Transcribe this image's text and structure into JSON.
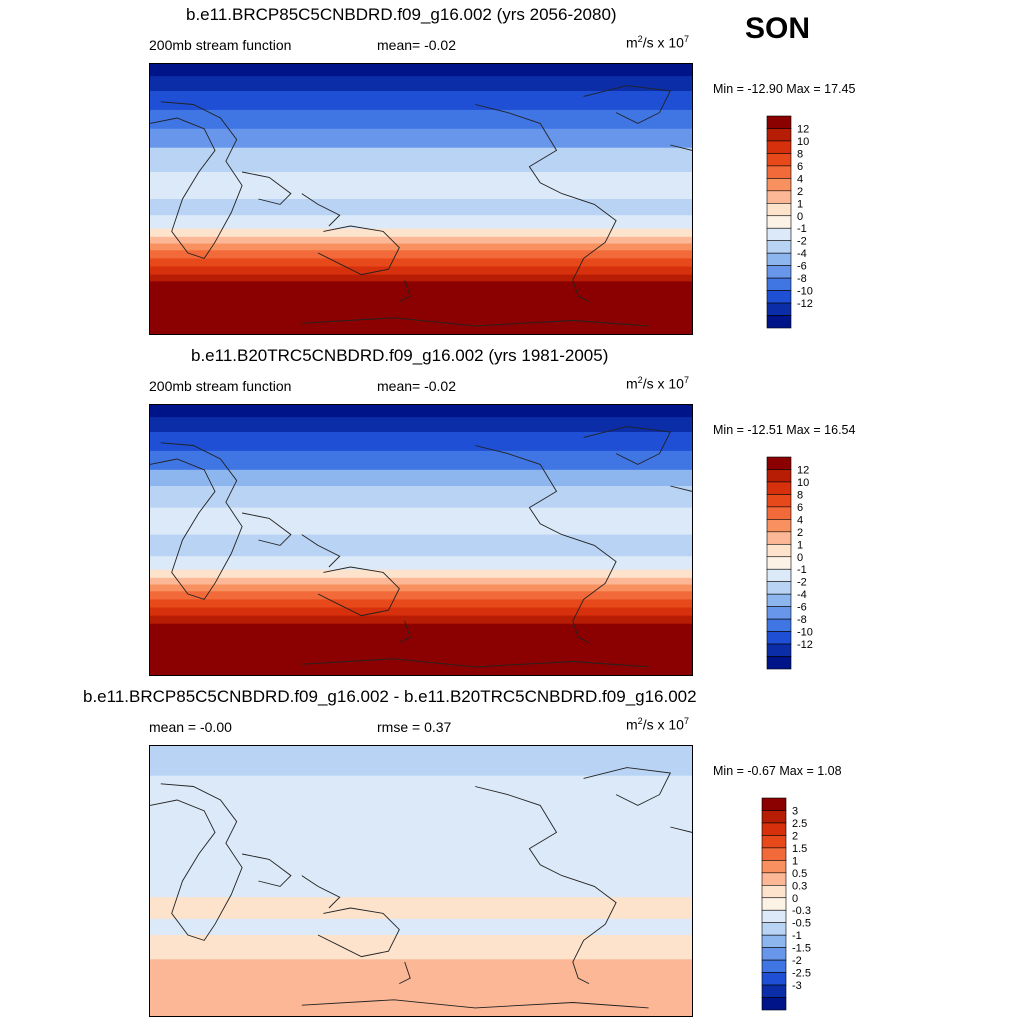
{
  "season": "SON",
  "panels": [
    {
      "title": "b.e11.BRCP85C5CNBDRD.f09_g16.002 (yrs 2056-2080)",
      "left_label": "200mb stream function",
      "center_label": "mean=  -0.02",
      "units_base": "m",
      "units_exp1": "2",
      "units_mid": "/s x 10",
      "units_exp2": "7",
      "minmax": "Min = -12.90 Max =  17.45",
      "colorbar": {
        "labels": [
          "12",
          "10",
          "8",
          "6",
          "4",
          "2",
          "1",
          "0",
          "-1",
          "-2",
          "-4",
          "-6",
          "-8",
          "-10",
          "-12"
        ],
        "colors": [
          "#8b0000",
          "#b71c05",
          "#d6300c",
          "#e8491a",
          "#f26a3a",
          "#f8915f",
          "#fcb896",
          "#fde2cc",
          "#fdf2e6",
          "#dbe9f8",
          "#b9d3f4",
          "#8db6ef",
          "#6896ea",
          "#4075e4",
          "#1e4fd4",
          "#0b2ea8",
          "#00148a"
        ]
      },
      "bands": [
        {
          "y": 0.0,
          "c": "#00148a"
        },
        {
          "y": 0.045,
          "c": "#0b2ea8"
        },
        {
          "y": 0.1,
          "c": "#1e4fd4"
        },
        {
          "y": 0.17,
          "c": "#4075e4"
        },
        {
          "y": 0.24,
          "c": "#6896ea"
        },
        {
          "y": 0.31,
          "c": "#b9d3f4"
        },
        {
          "y": 0.4,
          "c": "#dbe9f8"
        },
        {
          "y": 0.5,
          "c": "#b9d3f4"
        },
        {
          "y": 0.56,
          "c": "#dbe9f8"
        },
        {
          "y": 0.61,
          "c": "#fde2cc"
        },
        {
          "y": 0.64,
          "c": "#fcb896"
        },
        {
          "y": 0.665,
          "c": "#f8915f"
        },
        {
          "y": 0.69,
          "c": "#f26a3a"
        },
        {
          "y": 0.72,
          "c": "#e8491a"
        },
        {
          "y": 0.75,
          "c": "#d6300c"
        },
        {
          "y": 0.78,
          "c": "#b71c05"
        },
        {
          "y": 0.805,
          "c": "#8b0000"
        }
      ]
    },
    {
      "title": "b.e11.B20TRC5CNBDRD.f09_g16.002 (yrs 1981-2005)",
      "left_label": "200mb stream function",
      "center_label": "mean=  -0.02",
      "units_base": "m",
      "units_exp1": "2",
      "units_mid": "/s x 10",
      "units_exp2": "7",
      "minmax": "Min = -12.51 Max =  16.54",
      "colorbar": {
        "labels": [
          "12",
          "10",
          "8",
          "6",
          "4",
          "2",
          "1",
          "0",
          "-1",
          "-2",
          "-4",
          "-6",
          "-8",
          "-10",
          "-12"
        ],
        "colors": [
          "#8b0000",
          "#b71c05",
          "#d6300c",
          "#e8491a",
          "#f26a3a",
          "#f8915f",
          "#fcb896",
          "#fde2cc",
          "#fdf2e6",
          "#dbe9f8",
          "#b9d3f4",
          "#8db6ef",
          "#6896ea",
          "#4075e4",
          "#1e4fd4",
          "#0b2ea8",
          "#00148a"
        ]
      },
      "bands": [
        {
          "y": 0.0,
          "c": "#00148a"
        },
        {
          "y": 0.045,
          "c": "#0b2ea8"
        },
        {
          "y": 0.1,
          "c": "#1e4fd4"
        },
        {
          "y": 0.17,
          "c": "#4075e4"
        },
        {
          "y": 0.24,
          "c": "#8db6ef"
        },
        {
          "y": 0.3,
          "c": "#b9d3f4"
        },
        {
          "y": 0.38,
          "c": "#dbe9f8"
        },
        {
          "y": 0.48,
          "c": "#b9d3f4"
        },
        {
          "y": 0.56,
          "c": "#dbe9f8"
        },
        {
          "y": 0.61,
          "c": "#fde2cc"
        },
        {
          "y": 0.64,
          "c": "#fcb896"
        },
        {
          "y": 0.665,
          "c": "#f8915f"
        },
        {
          "y": 0.69,
          "c": "#f26a3a"
        },
        {
          "y": 0.72,
          "c": "#e8491a"
        },
        {
          "y": 0.75,
          "c": "#d6300c"
        },
        {
          "y": 0.78,
          "c": "#b71c05"
        },
        {
          "y": 0.81,
          "c": "#8b0000"
        }
      ]
    },
    {
      "title": "b.e11.BRCP85C5CNBDRD.f09_g16.002 - b.e11.B20TRC5CNBDRD.f09_g16.002",
      "left_label": "mean =  -0.00",
      "center_label": "rmse =   0.37",
      "units_base": "m",
      "units_exp1": "2",
      "units_mid": "/s x 10",
      "units_exp2": "7",
      "minmax": "Min =  -0.67 Max =   1.08",
      "colorbar": {
        "labels": [
          "3",
          "2.5",
          "2",
          "1.5",
          "1",
          "0.5",
          "0.3",
          "0",
          "-0.3",
          "-0.5",
          "-1",
          "-1.5",
          "-2",
          "-2.5",
          "-3"
        ],
        "colors": [
          "#8b0000",
          "#b71c05",
          "#d6300c",
          "#e8491a",
          "#f26a3a",
          "#f8915f",
          "#fcb896",
          "#fde2cc",
          "#fdf2e6",
          "#dbe9f8",
          "#b9d3f4",
          "#8db6ef",
          "#6896ea",
          "#4075e4",
          "#1e4fd4",
          "#0b2ea8",
          "#00148a"
        ]
      },
      "bands": [
        {
          "y": 0.0,
          "c": "#b9d3f4"
        },
        {
          "y": 0.11,
          "c": "#dbe9f8"
        },
        {
          "y": 0.45,
          "c": "#dbe9f8"
        },
        {
          "y": 0.56,
          "c": "#fde2cc"
        },
        {
          "y": 0.64,
          "c": "#dbe9f8"
        },
        {
          "y": 0.7,
          "c": "#fde2cc"
        },
        {
          "y": 0.79,
          "c": "#fcb896"
        }
      ]
    }
  ]
}
